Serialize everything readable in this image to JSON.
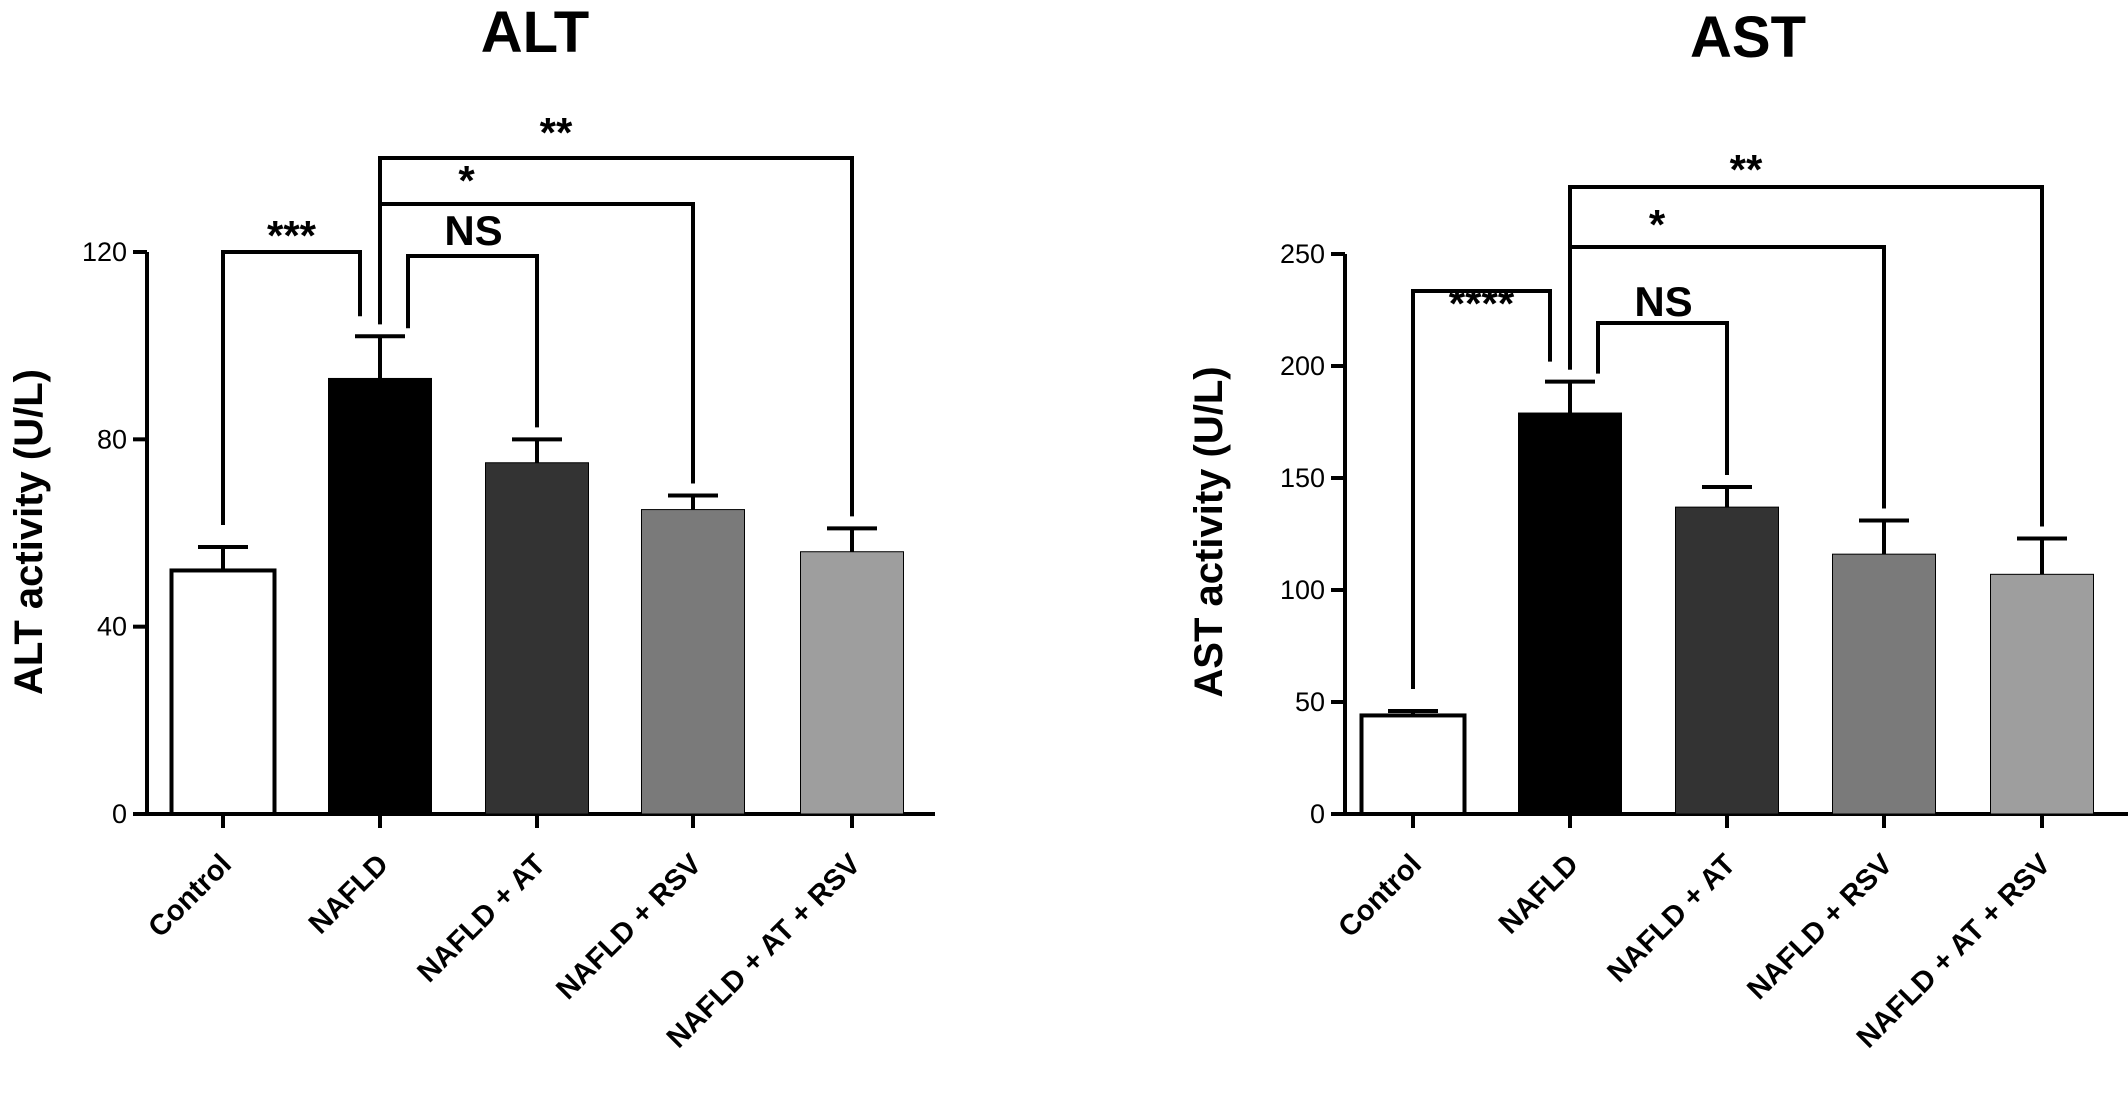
{
  "chart_data": [
    {
      "type": "bar",
      "title": "ALT",
      "ylabel": "ALT activity (U/L)",
      "xlabel": "",
      "ylim": [
        0,
        120
      ],
      "yticks": [
        0,
        40,
        80,
        120
      ],
      "categories": [
        "Control",
        "NAFLD",
        "NAFLD + AT",
        "NAFLD + RSV",
        "NAFLD + AT + RSV"
      ],
      "values": [
        52,
        93,
        75,
        65,
        56
      ],
      "errors": [
        5,
        9,
        5,
        3,
        5
      ],
      "colors": [
        "#ffffff",
        "#000000",
        "#333333",
        "#7a7a7a",
        "#9e9e9e"
      ],
      "comparisons": [
        {
          "from": 0,
          "to": 1,
          "label": "***"
        },
        {
          "from": 1,
          "to": 2,
          "label": "NS"
        },
        {
          "from": 1,
          "to": 3,
          "label": "*"
        },
        {
          "from": 1,
          "to": 4,
          "label": "**"
        }
      ]
    },
    {
      "type": "bar",
      "title": "AST",
      "ylabel": "AST activity (U/L)",
      "xlabel": "",
      "ylim": [
        0,
        250
      ],
      "yticks": [
        0,
        50,
        100,
        150,
        200,
        250
      ],
      "categories": [
        "Control",
        "NAFLD",
        "NAFLD + AT",
        "NAFLD + RSV",
        "NAFLD + AT + RSV"
      ],
      "values": [
        44,
        179,
        137,
        116,
        107
      ],
      "errors": [
        2,
        14,
        9,
        15,
        16
      ],
      "colors": [
        "#ffffff",
        "#000000",
        "#333333",
        "#7a7a7a",
        "#9e9e9e"
      ],
      "comparisons": [
        {
          "from": 0,
          "to": 1,
          "label": "****"
        },
        {
          "from": 1,
          "to": 2,
          "label": "NS"
        },
        {
          "from": 1,
          "to": 3,
          "label": "*"
        },
        {
          "from": 1,
          "to": 4,
          "label": "**"
        }
      ]
    }
  ]
}
